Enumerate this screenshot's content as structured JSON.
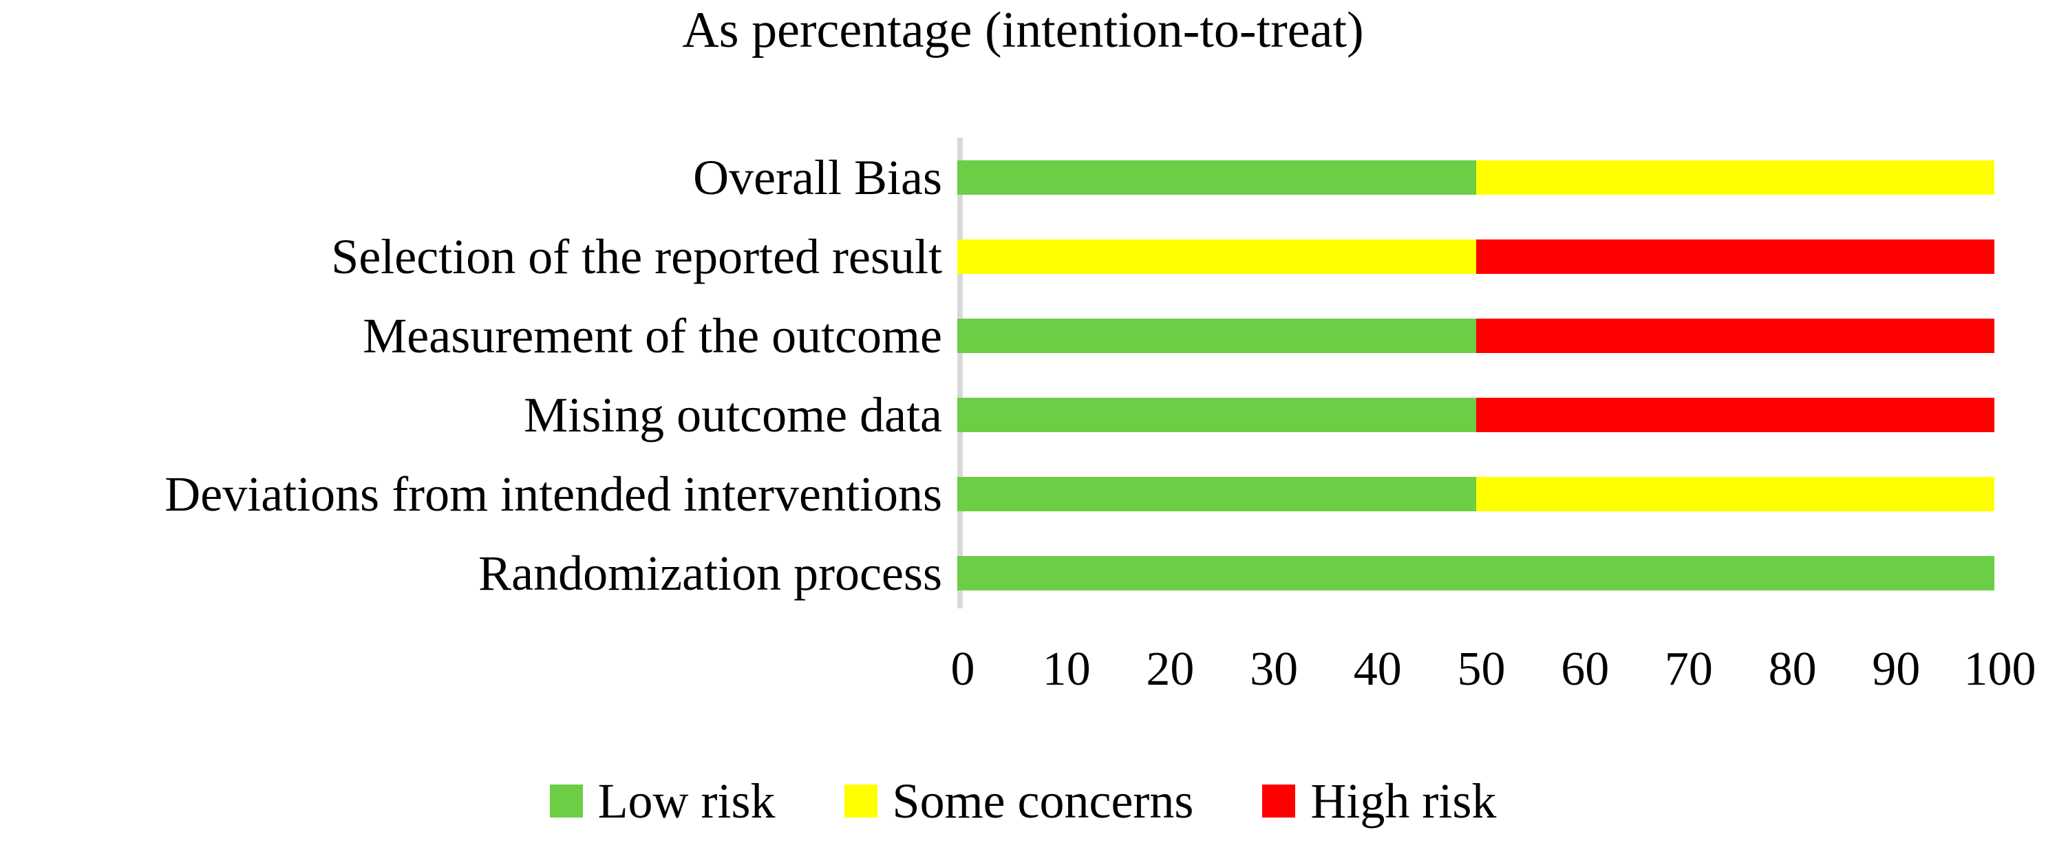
{
  "chart_data": {
    "type": "bar",
    "orientation": "horizontal",
    "stacked": true,
    "unit": "percent",
    "title": "As percentage (intention-to-treat)",
    "categories": [
      "Overall Bias",
      "Selection of the reported result",
      "Measurement of the outcome",
      "Mising outcome data",
      "Deviations from intended interventions",
      "Randomization process"
    ],
    "series": [
      {
        "name": "Low risk",
        "color": "#6CCE44",
        "values": [
          50,
          0,
          50,
          50,
          50,
          100
        ]
      },
      {
        "name": "Some concerns",
        "color": "#FFFF00",
        "values": [
          50,
          50,
          0,
          0,
          50,
          0
        ]
      },
      {
        "name": "High risk",
        "color": "#FF0000",
        "values": [
          0,
          50,
          50,
          50,
          0,
          0
        ]
      }
    ],
    "xlim": [
      0,
      100
    ],
    "x_ticks": [
      0,
      10,
      20,
      30,
      40,
      50,
      60,
      70,
      80,
      90,
      100
    ],
    "legend_position": "bottom",
    "grid": false
  },
  "colors": {
    "background": "#FFFFFF",
    "axis_line": "#D9D9D9",
    "text": "#000000"
  }
}
